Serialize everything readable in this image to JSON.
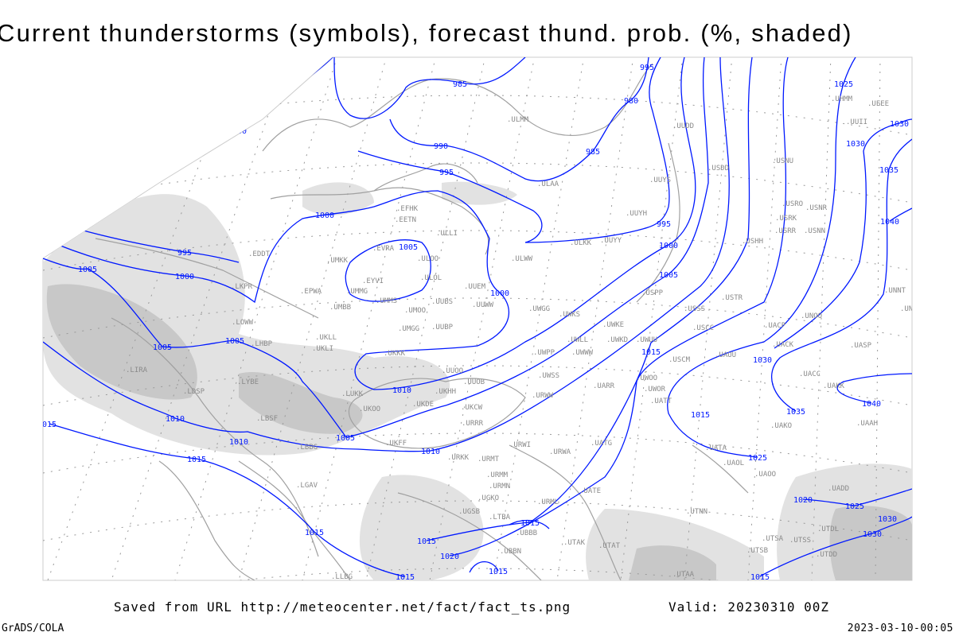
{
  "title": "Current thunderstorms (symbols), forecast thund. prob. (%, shaded)",
  "footer": {
    "saved_from": "Saved from URL http://meteocenter.net/fact/fact_ts.png",
    "valid": "Valid: 20230310 00Z",
    "software": "GrADS/COLA",
    "timestamp": "2023-03-10-00:05"
  },
  "colors": {
    "isobar": "#0018ff",
    "coastline": "#a0a0a0",
    "station_label": "#8a8a8a",
    "thunder_prob_light": "#e2e2e2",
    "thunder_prob_dark": "#c8c8c8",
    "grid": "#9a9a9a"
  },
  "isobar_labels": [
    "1000",
    "985",
    "990",
    "995",
    "980",
    "995",
    "985",
    "995",
    "1000",
    "1000",
    "995",
    "1000",
    "1005",
    "1005",
    "1005",
    "1005",
    "1000",
    "1005",
    "1015",
    "1010",
    "1010",
    "1010",
    "1010",
    "1015",
    "1015",
    "1015",
    "1015",
    "1015",
    "1015",
    "1015",
    "1015",
    "1020",
    "1020",
    "1025",
    "1025",
    "1025",
    "1030",
    "1030",
    "1030",
    "1030",
    "1030",
    "1035",
    "1035",
    "1040",
    "1040",
    "1005",
    "015"
  ],
  "stations": [
    "EFHK",
    "EETN",
    "ULLI",
    "EVRA",
    "ULOO",
    "UMKK",
    "EYVI",
    "ULOL",
    "EDDT",
    "LKPR",
    "EPWA",
    "UMMG",
    "UMBB",
    "UMMS",
    "UMOO",
    "UUBS",
    "UUEM",
    "UUWW",
    "ULWW",
    "LOWW",
    "UKLL",
    "UKLI",
    "LHBP",
    "UMGG",
    "UUBP",
    "UKKK",
    "UUOO",
    "UUOB",
    "LYBE",
    "UKHH",
    "LUKK",
    "UKOO",
    "UKDE",
    "UKCW",
    "URRR",
    "UKFF",
    "URKK",
    "URWI",
    "URMT",
    "URWA",
    "URMM",
    "URMN",
    "URML",
    "UGSB",
    "UGKO",
    "UBBB",
    "UTAK",
    "UTAT",
    "UATE",
    "UATG",
    "UWWW",
    "UWSS",
    "URWW",
    "UWKS",
    "UWGG",
    "UWKE",
    "UWLL",
    "UWKD",
    "UWUU",
    "UWPP",
    "UARR",
    "UWOO",
    "UWOR",
    "UATT",
    "USSS",
    "USCC",
    "USCM",
    "UAUU",
    "USTR",
    "USPP",
    "ULAA",
    "UUYS",
    "UUYH",
    "UUYY",
    "ULKK",
    "USDD",
    "UUDD",
    "USHH",
    "USRR",
    "USRK",
    "USRO",
    "USNR",
    "USNN",
    "USNU",
    "UNOO",
    "UACP",
    "UACK",
    "UASP",
    "UACC",
    "UAKK",
    "UAAH",
    "UNNT",
    "UNBB",
    "UAKO",
    "UATA",
    "UAOL",
    "UAOO",
    "UADD",
    "UTNN",
    "UTSA",
    "UTSB",
    "UTSS",
    "UTDD",
    "UTDL",
    "UTAA",
    "LIRA",
    "LDSP",
    "LBSF",
    "LBBG",
    "LGAV",
    "LTBA",
    "LLBG",
    "UBBN",
    "ULMM",
    "UUII",
    "UHMM",
    "UEEE"
  ]
}
